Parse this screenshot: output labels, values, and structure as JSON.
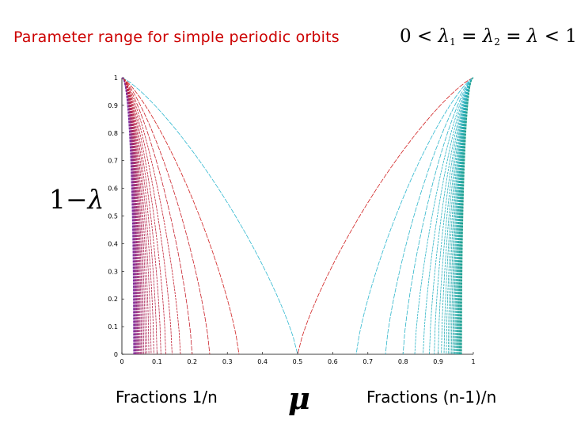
{
  "slide": {
    "title": "Parameter range for simple periodic orbits",
    "footer_left": "Fractions 1/n",
    "footer_right": "Fractions (n-1)/n"
  },
  "equation": {
    "zero": "0",
    "lambda": "λ",
    "sub1": "1",
    "sub2": "2",
    "lt": "<",
    "eq": "=",
    "one": "1"
  },
  "ylabel_parts": {
    "one": "1",
    "minus": "−",
    "lambda": "λ"
  },
  "xlabel": "μ",
  "colors": {
    "title": "#cc0000",
    "curve_red": "#d02020",
    "curve_purple": "#8030a0",
    "curve_cyan": "#30b8d0",
    "curve_teal": "#20a090"
  },
  "chart_data": {
    "type": "line",
    "xlim": [
      0,
      1
    ],
    "ylim": [
      0,
      1
    ],
    "xticks": [
      "0",
      "0.1",
      "0.2",
      "0.3",
      "0.4",
      "0.5",
      "0.6",
      "0.7",
      "0.8",
      "0.9",
      "1"
    ],
    "yticks": [
      "0",
      "0.1",
      "0.2",
      "0.3",
      "0.4",
      "0.5",
      "0.6",
      "0.7",
      "0.8",
      "0.9",
      "1"
    ],
    "grid": false,
    "endpoints_left": [
      0.5,
      0.3333,
      0.25,
      0.2,
      0.1667,
      0.1429,
      0.125,
      0.1111,
      0.1,
      0.0909,
      0.0833,
      0.0769,
      0.0714,
      0.0667,
      0.0625,
      0.0588,
      0.0556,
      0.0526,
      0.05,
      0.0476,
      0.0455,
      0.0435,
      0.0417,
      0.04,
      0.0385,
      0.037,
      0.0357,
      0.0345,
      0.0333
    ],
    "endpoints_right": [
      0.5,
      0.6667,
      0.75,
      0.8,
      0.8333,
      0.8571,
      0.875,
      0.8889,
      0.9,
      0.9091,
      0.9167,
      0.9231,
      0.9286,
      0.9333,
      0.9375,
      0.9412,
      0.9444,
      0.9474,
      0.95,
      0.9524,
      0.9545,
      0.9565,
      0.9583,
      0.96,
      0.9615,
      0.963,
      0.9643,
      0.9655,
      0.9667
    ]
  }
}
